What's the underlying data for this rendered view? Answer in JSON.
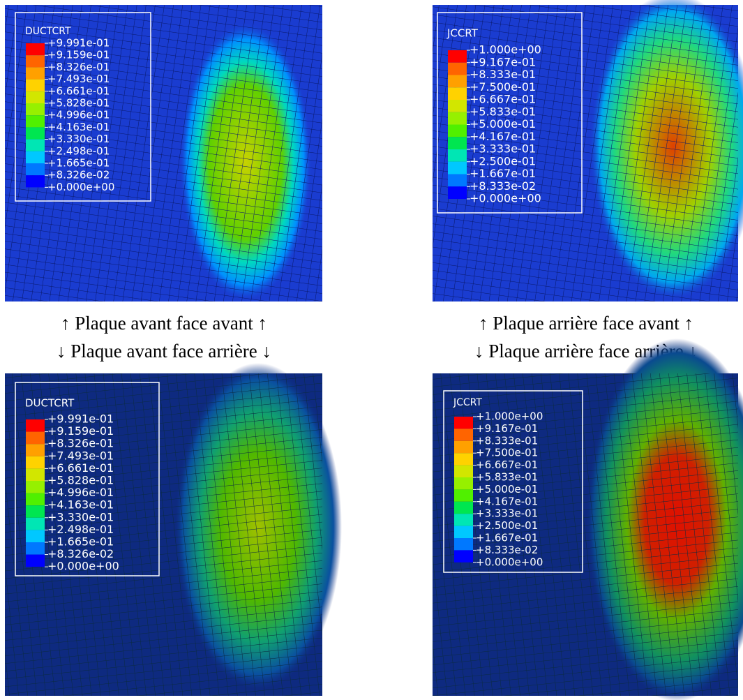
{
  "panels": [
    {
      "legend": {
        "title": "DUCTCRT",
        "labels": [
          "+9.991e-01",
          "+9.159e-01",
          "+8.326e-01",
          "+7.493e-01",
          "+6.661e-01",
          "+5.828e-01",
          "+4.996e-01",
          "+4.163e-01",
          "+3.330e-01",
          "+2.498e-01",
          "+1.665e-01",
          "+8.326e-02",
          "+0.000e+00"
        ]
      }
    },
    {
      "legend": {
        "title": "JCCRT",
        "labels": [
          "+1.000e+00",
          "+9.167e-01",
          "+8.333e-01",
          "+7.500e-01",
          "+6.667e-01",
          "+5.833e-01",
          "+5.000e-01",
          "+4.167e-01",
          "+3.333e-01",
          "+2.500e-01",
          "+1.667e-01",
          "+8.333e-02",
          "+0.000e+00"
        ]
      }
    },
    {
      "legend": {
        "title": "DUCTCRT",
        "labels": [
          "+9.991e-01",
          "+9.159e-01",
          "+8.326e-01",
          "+7.493e-01",
          "+6.661e-01",
          "+5.828e-01",
          "+4.996e-01",
          "+4.163e-01",
          "+3.330e-01",
          "+2.498e-01",
          "+1.665e-01",
          "+8.326e-02",
          "+0.000e+00"
        ]
      }
    },
    {
      "legend": {
        "title": "JCCRT",
        "labels": [
          "+1.000e+00",
          "+9.167e-01",
          "+8.333e-01",
          "+7.500e-01",
          "+6.667e-01",
          "+5.833e-01",
          "+5.000e-01",
          "+4.167e-01",
          "+3.333e-01",
          "+2.500e-01",
          "+1.667e-01",
          "+8.333e-02",
          "+0.000e+00"
        ]
      }
    }
  ],
  "captions": {
    "top_left_up": "↑ Plaque avant face avant ↑",
    "top_left_down": "↓ Plaque avant face arrière ↓",
    "top_right_up": "↑ Plaque arrière face avant ↑",
    "top_right_down": "↓ Plaque arrière face arrière ↓"
  }
}
